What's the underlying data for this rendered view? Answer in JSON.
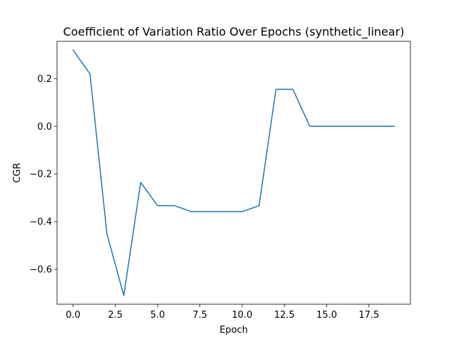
{
  "chart_data": {
    "type": "line",
    "title": "Coefficient of Variation Ratio Over Epochs (synthetic_linear)",
    "xlabel": "Epoch",
    "ylabel": "CGR",
    "xlim": [
      -0.95,
      19.95
    ],
    "ylim": [
      -0.7465,
      0.3565
    ],
    "x_ticks": [
      0.0,
      2.5,
      5.0,
      7.5,
      10.0,
      12.5,
      15.0,
      17.5
    ],
    "x_tick_labels": [
      "0.0",
      "2.5",
      "5.0",
      "7.5",
      "10.0",
      "12.5",
      "15.0",
      "17.5"
    ],
    "y_ticks": [
      -0.6,
      -0.4,
      -0.2,
      0.0,
      0.2
    ],
    "y_tick_labels": [
      "−0.6",
      "−0.4",
      "−0.2",
      "0.0",
      "0.2"
    ],
    "grid": false,
    "series": [
      {
        "color": "#1f77b4",
        "x": [
          0,
          1,
          2,
          3,
          4,
          5,
          6,
          7,
          8,
          9,
          10,
          11,
          12,
          13,
          14,
          15,
          16,
          17,
          18,
          19
        ],
        "y": [
          0.32,
          0.22,
          -0.45,
          -0.71,
          -0.235,
          -0.333,
          -0.333,
          -0.358,
          -0.358,
          -0.358,
          -0.358,
          -0.333,
          0.155,
          0.155,
          0.0,
          0.0,
          0.0,
          0.0,
          0.0,
          0.0
        ]
      }
    ]
  }
}
